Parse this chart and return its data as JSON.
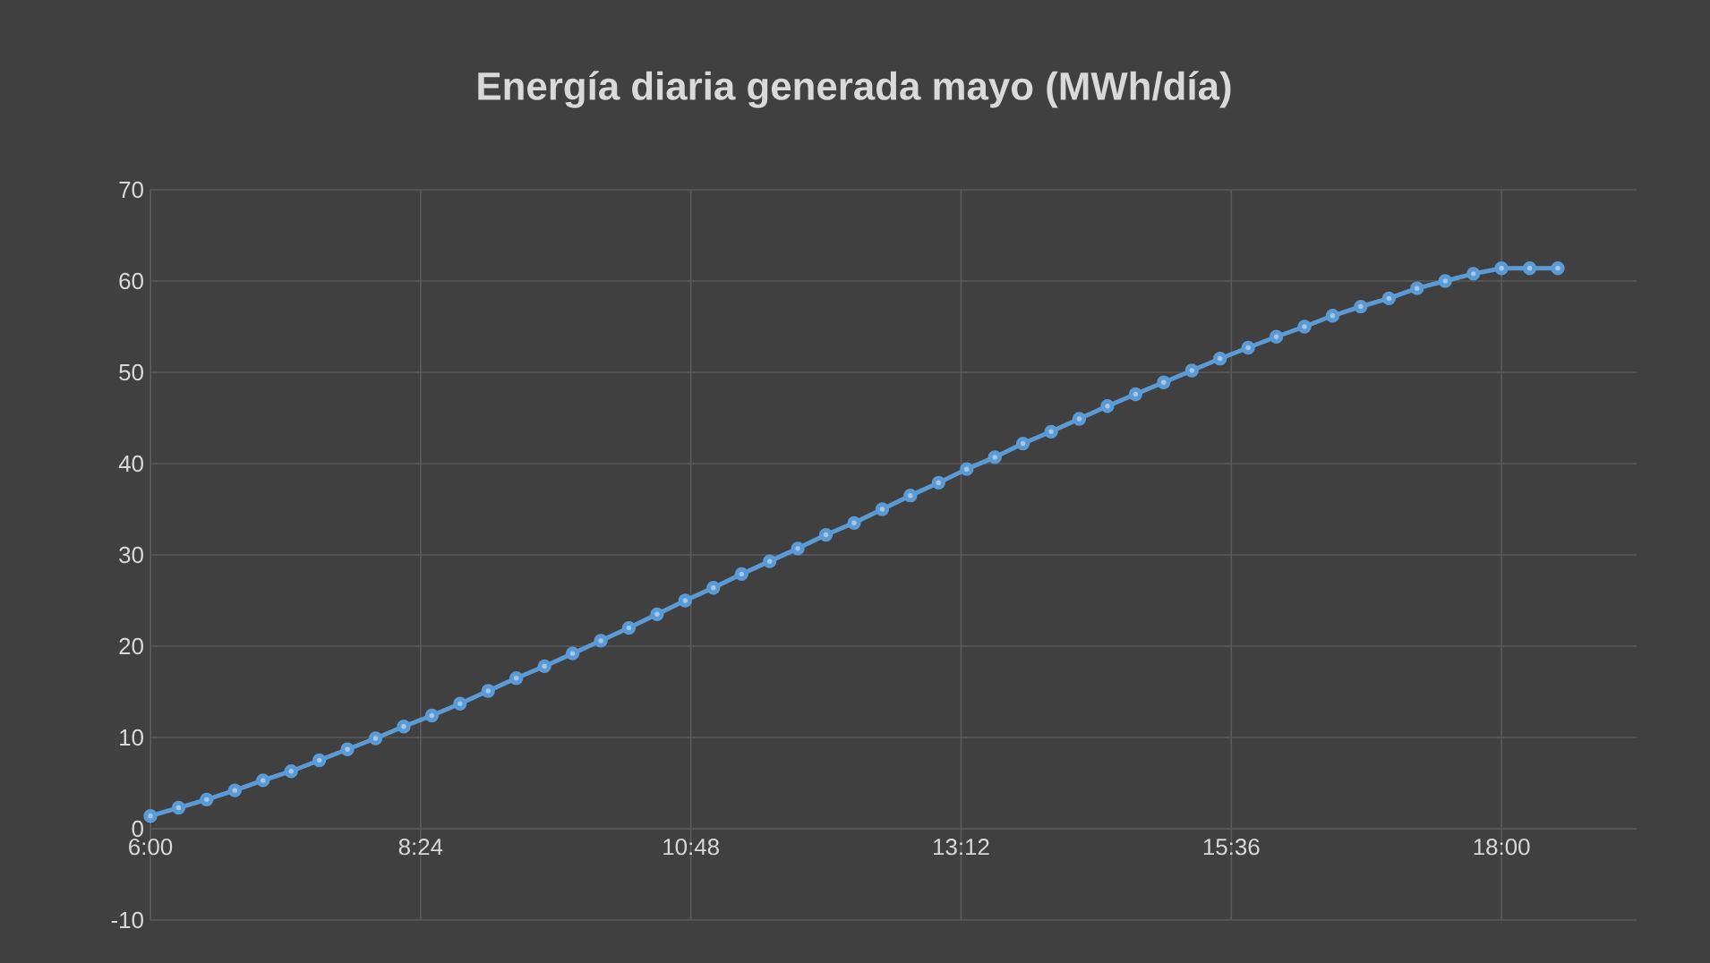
{
  "chart_data": {
    "type": "line",
    "title": "Energía diaria generada mayo (MWh/día)",
    "x": [
      6,
      6.25,
      6.5,
      6.75,
      7,
      7.25,
      7.5,
      7.75,
      8,
      8.25,
      8.5,
      8.75,
      9,
      9.25,
      9.5,
      9.75,
      10,
      10.25,
      10.5,
      10.75,
      11,
      11.25,
      11.5,
      11.75,
      12,
      12.25,
      12.5,
      12.75,
      13,
      13.25,
      13.5,
      13.75,
      14,
      14.25,
      14.5,
      14.75,
      15,
      15.25,
      15.5,
      15.75,
      16,
      16.25,
      16.5,
      16.75,
      17,
      17.25,
      17.5,
      17.75,
      18,
      18.25,
      18.5
    ],
    "series": [
      {
        "color": "#5b9bd5",
        "values": [
          1.4,
          2.3,
          3.2,
          4.2,
          5.3,
          6.3,
          7.5,
          8.7,
          9.9,
          11.2,
          12.4,
          13.7,
          15.1,
          16.5,
          17.8,
          19.2,
          20.6,
          22.0,
          23.5,
          25.0,
          26.4,
          27.9,
          29.3,
          30.7,
          32.2,
          33.5,
          35.0,
          36.5,
          37.9,
          39.4,
          40.7,
          42.2,
          43.5,
          44.9,
          46.3,
          47.6,
          48.9,
          50.2,
          51.5,
          52.7,
          53.9,
          55.0,
          56.2,
          57.2,
          58.1,
          59.2,
          60.0,
          60.8,
          61.4,
          61.4,
          61.4
        ]
      }
    ],
    "xlim": [
      6,
      19.2
    ],
    "xticks": [
      {
        "value": 6,
        "label": "6:00"
      },
      {
        "value": 8.4,
        "label": "8:24"
      },
      {
        "value": 10.8,
        "label": "10:48"
      },
      {
        "value": 13.2,
        "label": "13:12"
      },
      {
        "value": 15.6,
        "label": "15:36"
      },
      {
        "value": 18,
        "label": "18:00"
      }
    ],
    "ylim": [
      -10,
      70
    ],
    "yticks": [
      -10,
      0,
      10,
      20,
      30,
      40,
      50,
      60,
      70
    ],
    "grid": true,
    "marker": "circle",
    "line_style": "solid"
  }
}
